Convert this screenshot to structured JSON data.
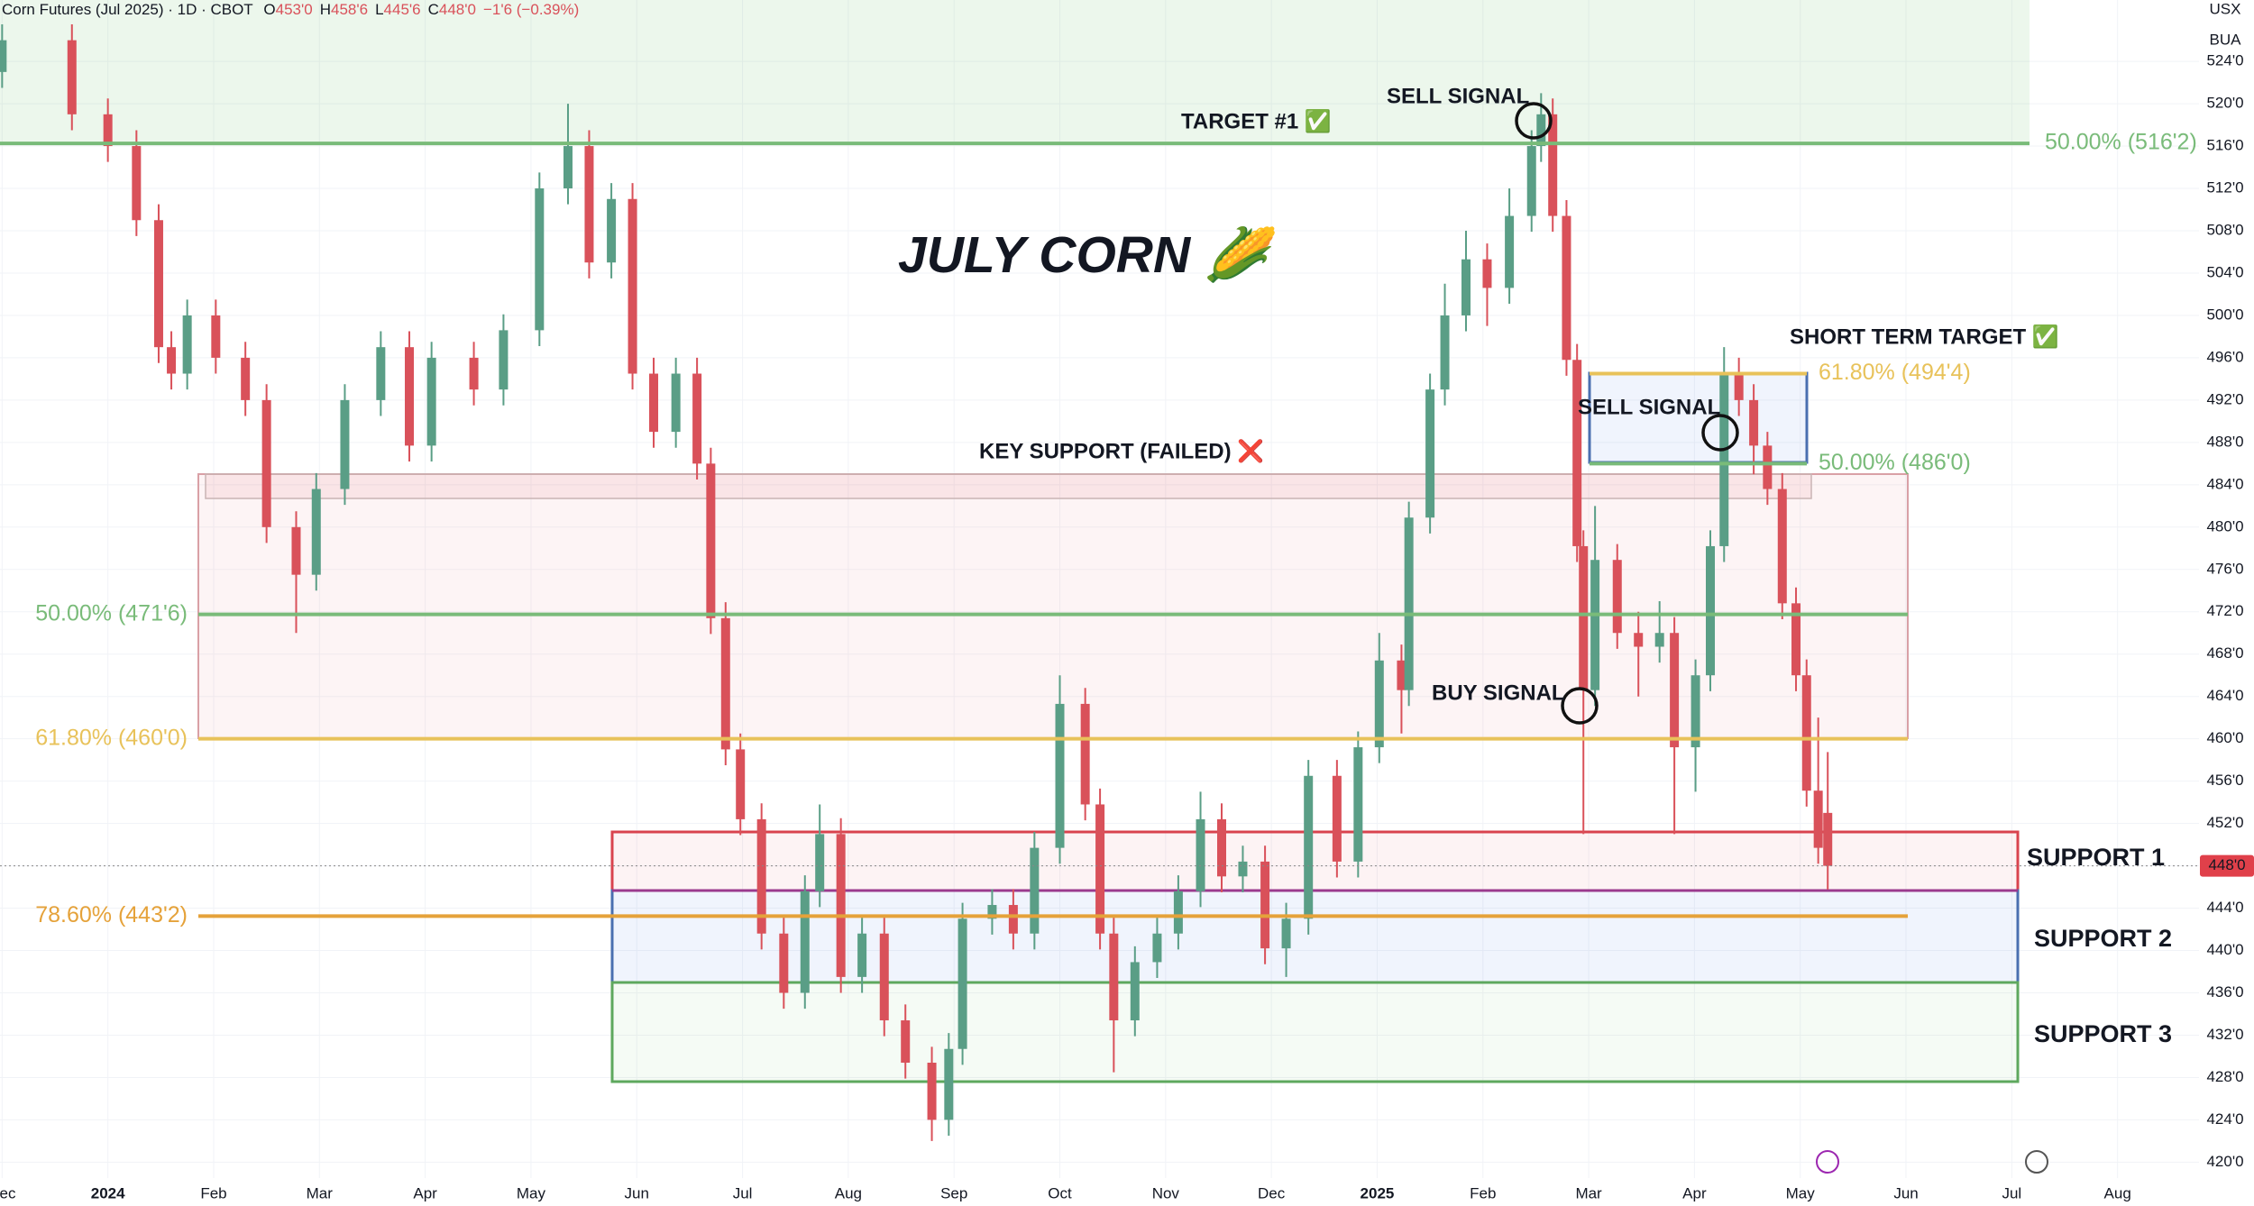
{
  "chart_data": {
    "type": "candlestick",
    "header": {
      "title": "Corn Futures (Jul 2025) · 1D · CBOT",
      "fields": [
        {
          "key": "O",
          "value": "453'0"
        },
        {
          "key": "H",
          "value": "458'6"
        },
        {
          "key": "L",
          "value": "445'6"
        },
        {
          "key": "C",
          "value": "448'0"
        }
      ],
      "change": "−1'6 (−0.39%)"
    },
    "top_right": [
      "USX",
      "BUA"
    ],
    "title": "JULY CORN 🌽",
    "x": [
      -1.0,
      -0.34,
      0,
      0.27,
      0.48,
      0.6,
      0.75,
      1.02,
      1.3,
      1.5,
      1.78,
      1.97,
      2.24,
      2.58,
      2.85,
      3.06,
      3.46,
      3.74,
      4.08,
      4.35,
      4.55,
      4.76,
      4.96,
      5.16,
      5.37,
      5.57,
      5.7,
      5.84,
      5.98,
      6.18,
      6.39,
      6.59,
      6.73,
      6.93,
      7.13,
      7.34,
      7.54,
      7.79,
      7.95,
      8.08,
      8.36,
      8.56,
      8.76,
      9.0,
      9.24,
      9.38,
      9.51,
      9.71,
      9.92,
      10.12,
      10.33,
      10.53,
      10.73,
      10.94,
      11.14,
      11.35,
      11.62,
      11.82,
      12.02,
      12.23,
      12.3,
      12.5,
      12.64,
      12.84,
      13.04,
      13.25,
      13.46,
      13.55,
      13.66,
      13.79,
      13.89,
      13.95,
      14.06,
      14.27,
      14.47,
      14.67,
      14.81,
      15.01,
      15.15,
      15.28,
      15.42,
      15.56,
      15.69,
      15.83,
      15.96,
      16.06,
      16.17,
      16.26
    ],
    "open": [
      523,
      526,
      519,
      516,
      509,
      497,
      494.5,
      500,
      496,
      492,
      480,
      475.5,
      483.6,
      492,
      497,
      487.7,
      496,
      493,
      498.6,
      512,
      516,
      505,
      511,
      494.5,
      489,
      494.5,
      486,
      471.4,
      459,
      452.4,
      441.6,
      436,
      445.6,
      451,
      437.5,
      441.6,
      433.4,
      429.4,
      424,
      430.7,
      443,
      444.3,
      441.6,
      449.7,
      463.3,
      453.8,
      441.6,
      433.4,
      438.9,
      441.6,
      445.6,
      452.4,
      447,
      448.4,
      440.2,
      443,
      456.5,
      448.4,
      459.2,
      467.4,
      464.6,
      480.9,
      493,
      500,
      505.3,
      502.6,
      509.4,
      516,
      519,
      509.4,
      495.8,
      478.2,
      464.6,
      476.9,
      470,
      468.7,
      470,
      459.2,
      466,
      478.2,
      494.5,
      492,
      487.7,
      483.6,
      472.8,
      466,
      455.1,
      453
    ],
    "high": [
      527.5,
      527.5,
      520.5,
      517.5,
      510.5,
      498.5,
      501.5,
      501.5,
      497.5,
      493.5,
      481.5,
      485.1,
      493.5,
      498.5,
      498.5,
      497.5,
      497.5,
      500.1,
      513.5,
      520,
      517.5,
      512.5,
      512.5,
      496,
      496,
      496,
      487.5,
      472.9,
      460.5,
      453.9,
      443.1,
      447.1,
      453.8,
      452.5,
      443.1,
      443.1,
      434.9,
      430.9,
      432.2,
      444.5,
      445.8,
      445.8,
      451.2,
      466,
      464.8,
      455.3,
      443.1,
      440.4,
      443.1,
      447.1,
      455,
      453.9,
      449.9,
      449.9,
      444.5,
      458,
      458,
      460.7,
      470,
      468.9,
      482.4,
      494.5,
      503,
      508,
      506.8,
      512,
      517.5,
      521,
      520.5,
      510.9,
      497.3,
      479.7,
      482,
      478.4,
      472,
      473,
      471.5,
      467.5,
      479.7,
      497,
      496,
      493.5,
      489,
      485.1,
      474.3,
      467.5,
      462,
      458.75
    ],
    "low": [
      521.5,
      517.5,
      514.5,
      507.5,
      495.5,
      493,
      493,
      494.5,
      490.5,
      478.5,
      470,
      474,
      482.1,
      490.5,
      486.2,
      486.2,
      491.5,
      491.5,
      497.1,
      510.5,
      503.5,
      503.5,
      493,
      487.5,
      487.5,
      484.5,
      469.9,
      457.5,
      450.9,
      440.1,
      434.5,
      434.5,
      444.1,
      436,
      436,
      431.9,
      427.9,
      422,
      422.5,
      429.2,
      441.5,
      440.1,
      440.1,
      448.2,
      452.3,
      440.1,
      428.5,
      431.9,
      437.4,
      440.1,
      444.1,
      445.5,
      445.5,
      438.7,
      437.5,
      441.5,
      446.9,
      446.9,
      457.7,
      460.5,
      463.1,
      479.4,
      491.5,
      498.5,
      499,
      501.1,
      507.9,
      514.5,
      507.9,
      494.3,
      476.7,
      451,
      463.1,
      468.5,
      464,
      467.2,
      451,
      455,
      464.5,
      476.7,
      490.5,
      485,
      482.1,
      471.3,
      464.5,
      453.6,
      448.2,
      445.75
    ],
    "close": [
      526,
      519,
      516,
      509,
      497,
      494.5,
      500,
      496,
      492,
      480,
      475.5,
      483.6,
      492,
      497,
      487.7,
      496,
      493,
      498.6,
      512,
      516,
      505,
      511,
      494.5,
      489,
      494.5,
      486,
      471.4,
      459,
      452.4,
      441.6,
      436,
      445.6,
      451,
      437.5,
      441.6,
      433.4,
      429.4,
      424,
      430.7,
      443,
      444.3,
      441.6,
      449.7,
      463.3,
      453.8,
      441.6,
      433.4,
      438.9,
      441.6,
      445.6,
      452.4,
      447,
      448.4,
      440.2,
      443,
      456.5,
      448.4,
      459.2,
      467.4,
      464.6,
      480.9,
      493,
      500,
      505.3,
      502.6,
      509.4,
      516,
      519,
      509.4,
      495.8,
      478.2,
      464.6,
      476.9,
      470,
      468.7,
      470,
      459.2,
      466,
      478.2,
      494.5,
      492,
      487.7,
      483.6,
      472.8,
      466,
      455.1,
      449.7,
      448
    ],
    "up_color": "#5a9e86",
    "down_color": "#d9515a",
    "xlim": [
      -1.02,
      19.77
    ],
    "xticks": [
      {
        "value": -1,
        "label": "Dec"
      },
      {
        "value": 0,
        "label": "2024"
      },
      {
        "value": 1,
        "label": "Feb"
      },
      {
        "value": 2,
        "label": "Mar"
      },
      {
        "value": 3,
        "label": "Apr"
      },
      {
        "value": 4,
        "label": "May"
      },
      {
        "value": 5,
        "label": "Jun"
      },
      {
        "value": 6,
        "label": "Jul"
      },
      {
        "value": 7,
        "label": "Aug"
      },
      {
        "value": 8,
        "label": "Sep"
      },
      {
        "value": 9,
        "label": "Oct"
      },
      {
        "value": 10,
        "label": "Nov"
      },
      {
        "value": 11,
        "label": "Dec"
      },
      {
        "value": 12,
        "label": "2025"
      },
      {
        "value": 13,
        "label": "Feb"
      },
      {
        "value": 14,
        "label": "Mar"
      },
      {
        "value": 15,
        "label": "Apr"
      },
      {
        "value": 16,
        "label": "May"
      },
      {
        "value": 17,
        "label": "Jun"
      },
      {
        "value": 18,
        "label": "Jul"
      },
      {
        "value": 19,
        "label": "Aug"
      }
    ],
    "ylim": [
      418.5,
      529.8
    ],
    "yticks": [
      {
        "value": 420,
        "label": "420'0"
      },
      {
        "value": 424,
        "label": "424'0"
      },
      {
        "value": 428,
        "label": "428'0"
      },
      {
        "value": 432,
        "label": "432'0"
      },
      {
        "value": 436,
        "label": "436'0"
      },
      {
        "value": 440,
        "label": "440'0"
      },
      {
        "value": 444,
        "label": "444'0"
      },
      {
        "value": 448,
        "label": "448'0"
      },
      {
        "value": 452,
        "label": "452'0"
      },
      {
        "value": 456,
        "label": "456'0"
      },
      {
        "value": 460,
        "label": "460'0"
      },
      {
        "value": 464,
        "label": "464'0"
      },
      {
        "value": 468,
        "label": "468'0"
      },
      {
        "value": 472,
        "label": "472'0"
      },
      {
        "value": 476,
        "label": "476'0"
      },
      {
        "value": 480,
        "label": "480'0"
      },
      {
        "value": 484,
        "label": "484'0"
      },
      {
        "value": 488,
        "label": "488'0"
      },
      {
        "value": 492,
        "label": "492'0"
      },
      {
        "value": 496,
        "label": "496'0"
      },
      {
        "value": 500,
        "label": "500'0"
      },
      {
        "value": 504,
        "label": "504'0"
      },
      {
        "value": 508,
        "label": "508'0"
      },
      {
        "value": 512,
        "label": "512'0"
      },
      {
        "value": 516,
        "label": "516'0"
      },
      {
        "value": 520,
        "label": "520'0"
      },
      {
        "value": 524,
        "label": "524'0"
      }
    ],
    "grid": true,
    "last_price": {
      "value": 448,
      "label": "448'0",
      "color": "#e0404a"
    },
    "levels": [
      {
        "value": 516.25,
        "label": "50.00% (516'2)",
        "color": "#79bb79"
      },
      {
        "value": 471.75,
        "label": "50.00% (471'6)",
        "color": "#79bb79"
      },
      {
        "value": 460,
        "label": "61.80% (460'0)",
        "color": "#e8c25a"
      },
      {
        "value": 443.25,
        "label": "78.60% (443'2)",
        "color": "#e5a23a"
      },
      {
        "value": 494.5,
        "label": "61.80% (494'4)",
        "color": "#e8c25a"
      },
      {
        "value": 486,
        "label": "50.00% (486'0)",
        "color": "#79bb79"
      }
    ],
    "annotations": [
      "TARGET #1 ✅",
      "SELL SIGNAL",
      "SHORT TERM TARGET ✅",
      "SELL SIGNAL",
      "KEY SUPPORT (FAILED) ❌",
      "BUY SIGNAL"
    ],
    "supports": [
      "SUPPORT 1",
      "SUPPORT 2",
      "SUPPORT 3"
    ]
  }
}
